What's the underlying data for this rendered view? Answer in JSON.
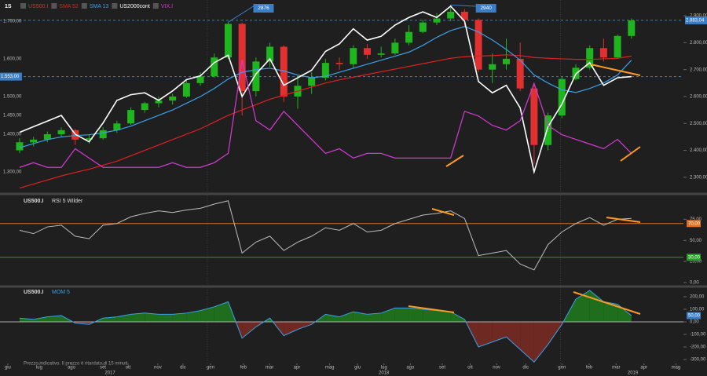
{
  "chart_data": [
    {
      "type": "candlestick",
      "timeframe": "1S",
      "x": [
        0,
        1,
        2,
        3,
        4,
        5,
        6,
        7,
        8,
        9,
        10,
        11,
        12,
        13,
        14,
        15,
        16,
        17,
        18,
        19,
        20,
        21,
        22,
        23,
        24,
        25,
        26,
        27,
        28,
        29,
        30,
        31,
        32,
        33,
        34,
        35,
        36,
        37,
        38,
        39,
        40,
        41,
        42,
        43,
        44
      ],
      "xlim": [
        -1.41,
        47.74
      ],
      "xticks": [
        {
          "value": -0.85,
          "label": "giu"
        },
        {
          "value": 1.41,
          "label": "lug"
        },
        {
          "value": 3.73,
          "label": "ago"
        },
        {
          "value": 5.99,
          "label": "set"
        },
        {
          "value": 7.8,
          "label": "ott"
        },
        {
          "value": 9.94,
          "label": "nov"
        },
        {
          "value": 11.75,
          "label": "dic"
        },
        {
          "value": 13.73,
          "label": "gen"
        },
        {
          "value": 16.1,
          "label": "feb"
        },
        {
          "value": 17.97,
          "label": "mar"
        },
        {
          "value": 19.94,
          "label": "apr"
        },
        {
          "value": 22.3,
          "label": "mag"
        },
        {
          "value": 24.3,
          "label": "giu"
        },
        {
          "value": 26.2,
          "label": "lug"
        },
        {
          "value": 28.1,
          "label": "ago"
        },
        {
          "value": 30.4,
          "label": "set"
        },
        {
          "value": 32.4,
          "label": "ott"
        },
        {
          "value": 34.3,
          "label": "nov"
        },
        {
          "value": 36.4,
          "label": "dic"
        },
        {
          "value": 39.0,
          "label": "gen"
        },
        {
          "value": 40.96,
          "label": "feb"
        },
        {
          "value": 42.9,
          "label": "mar"
        },
        {
          "value": 44.9,
          "label": "apr"
        },
        {
          "value": 47.2,
          "label": "mag"
        }
      ],
      "years": [
        {
          "value": 6.5,
          "label": "2017"
        },
        {
          "value": 26.2,
          "label": "2018"
        },
        {
          "value": 44.1,
          "label": "2019"
        }
      ],
      "year_lines": [
        13.5,
        38.9
      ],
      "ylim": [
        2250,
        2944
      ],
      "yticks": [
        {
          "value": 2900,
          "label": "2.900,00"
        },
        {
          "value": 2800,
          "label": "2.800,00"
        },
        {
          "value": 2700,
          "label": "2.700,00"
        },
        {
          "value": 2600,
          "label": "2.600,00"
        },
        {
          "value": 2500,
          "label": "2.500,00"
        },
        {
          "value": 2400,
          "label": "2.400,00"
        },
        {
          "value": 2300,
          "label": "2.300,00"
        }
      ],
      "y2lim": [
        1250,
        1746
      ],
      "y2ticks": [
        {
          "value": 1700,
          "label": "1.700,00"
        },
        {
          "value": 1600,
          "label": "1.600,00"
        },
        {
          "value": 1500,
          "label": "1.500,00"
        },
        {
          "value": 1450,
          "label": "1.450,00"
        },
        {
          "value": 1400,
          "label": "1.400,00"
        },
        {
          "value": 1300,
          "label": "1.300,00"
        }
      ],
      "y3lim": [
        5,
        45
      ],
      "price_marker": {
        "value": 2883.04,
        "label": "2.883,04"
      },
      "price_marker2": {
        "value": 1553,
        "label": "1.553,00"
      },
      "callouts": [
        {
          "x": 15,
          "value": 2876
        },
        {
          "x": 31,
          "value": 2940
        }
      ],
      "candles": {
        "name": "US500.I",
        "up_color": "#1fb51f",
        "down_color": "#e03030",
        "ohlc": [
          [
            2400,
            2445,
            2390,
            2430
          ],
          [
            2430,
            2450,
            2415,
            2440
          ],
          [
            2440,
            2470,
            2430,
            2460
          ],
          [
            2460,
            2485,
            2450,
            2475
          ],
          [
            2475,
            2480,
            2420,
            2440
          ],
          [
            2440,
            2460,
            2425,
            2445
          ],
          [
            2445,
            2485,
            2440,
            2475
          ],
          [
            2475,
            2510,
            2465,
            2500
          ],
          [
            2500,
            2560,
            2495,
            2550
          ],
          [
            2550,
            2580,
            2540,
            2575
          ],
          [
            2575,
            2600,
            2560,
            2585
          ],
          [
            2585,
            2610,
            2570,
            2600
          ],
          [
            2600,
            2665,
            2595,
            2650
          ],
          [
            2650,
            2690,
            2640,
            2675
          ],
          [
            2675,
            2760,
            2670,
            2745
          ],
          [
            2745,
            2876,
            2740,
            2870
          ],
          [
            2870,
            2875,
            2530,
            2620
          ],
          [
            2620,
            2745,
            2600,
            2730
          ],
          [
            2730,
            2800,
            2710,
            2785
          ],
          [
            2785,
            2790,
            2580,
            2600
          ],
          [
            2600,
            2680,
            2555,
            2640
          ],
          [
            2640,
            2690,
            2610,
            2670
          ],
          [
            2670,
            2740,
            2660,
            2725
          ],
          [
            2725,
            2745,
            2700,
            2720
          ],
          [
            2720,
            2790,
            2705,
            2780
          ],
          [
            2780,
            2795,
            2740,
            2755
          ],
          [
            2755,
            2785,
            2745,
            2760
          ],
          [
            2760,
            2815,
            2755,
            2800
          ],
          [
            2800,
            2865,
            2790,
            2840
          ],
          [
            2840,
            2885,
            2835,
            2875
          ],
          [
            2875,
            2910,
            2865,
            2890
          ],
          [
            2890,
            2940,
            2880,
            2915
          ],
          [
            2915,
            2925,
            2860,
            2885
          ],
          [
            2885,
            2890,
            2690,
            2700
          ],
          [
            2700,
            2760,
            2650,
            2720
          ],
          [
            2720,
            2815,
            2700,
            2740
          ],
          [
            2740,
            2800,
            2620,
            2630
          ],
          [
            2630,
            2650,
            2350,
            2420
          ],
          [
            2420,
            2540,
            2400,
            2530
          ],
          [
            2530,
            2675,
            2520,
            2665
          ],
          [
            2665,
            2720,
            2660,
            2707
          ],
          [
            2707,
            2790,
            2700,
            2780
          ],
          [
            2780,
            2815,
            2730,
            2745
          ],
          [
            2745,
            2830,
            2740,
            2825
          ],
          [
            2825,
            2890,
            2815,
            2883
          ]
        ]
      },
      "series": [
        {
          "name": "SMA 52",
          "color": "#e02020",
          "axis": "y",
          "values": [
            2260,
            2275,
            2290,
            2305,
            2318,
            2330,
            2345,
            2360,
            2380,
            2400,
            2420,
            2440,
            2460,
            2480,
            2505,
            2530,
            2550,
            2570,
            2590,
            2605,
            2620,
            2635,
            2650,
            2662,
            2672,
            2682,
            2692,
            2702,
            2712,
            2722,
            2732,
            2742,
            2748,
            2750,
            2752,
            2755,
            2752,
            2745,
            2742,
            2740,
            2738,
            2738,
            2740,
            2742,
            2750
          ]
        },
        {
          "name": "SMA 13",
          "color": "#3aa0e8",
          "axis": "y",
          "values": [
            2410,
            2425,
            2440,
            2450,
            2455,
            2458,
            2465,
            2475,
            2490,
            2510,
            2530,
            2550,
            2575,
            2600,
            2630,
            2665,
            2690,
            2700,
            2705,
            2695,
            2680,
            2670,
            2675,
            2690,
            2705,
            2720,
            2735,
            2750,
            2765,
            2790,
            2820,
            2845,
            2860,
            2840,
            2810,
            2775,
            2735,
            2680,
            2650,
            2625,
            2615,
            2630,
            2650,
            2680,
            2735
          ]
        },
        {
          "name": "US2000cont",
          "color": "#ffffff",
          "axis": "y2",
          "values": [
            1405,
            1420,
            1435,
            1450,
            1400,
            1380,
            1430,
            1490,
            1505,
            1510,
            1490,
            1515,
            1545,
            1555,
            1590,
            1610,
            1500,
            1560,
            1600,
            1530,
            1550,
            1570,
            1620,
            1640,
            1680,
            1650,
            1660,
            1690,
            1710,
            1725,
            1710,
            1740,
            1700,
            1540,
            1510,
            1530,
            1470,
            1300,
            1420,
            1480,
            1560,
            1590,
            1530,
            1550,
            1553
          ]
        },
        {
          "name": "VIX.I",
          "color": "#d63ad6",
          "axis": "y3",
          "values": [
            10,
            11,
            10,
            10,
            14,
            12,
            10,
            10,
            10,
            10,
            10,
            11,
            10,
            10,
            11,
            13,
            33,
            20,
            18,
            22,
            19,
            16,
            13,
            14,
            12,
            13,
            13,
            12,
            12,
            12,
            12,
            12,
            22,
            21,
            19,
            18,
            20,
            28,
            19,
            17,
            16,
            15,
            14,
            16,
            13
          ]
        }
      ],
      "note": "Prezzo indicativo. Il prezzo è ritardato di 15 minuti"
    },
    {
      "type": "line",
      "title": "US500.I",
      "indicator": "RSI 5 Wilder",
      "color": "#bdbdbd",
      "ylim": [
        0,
        100
      ],
      "yticks": [
        {
          "value": 0,
          "label": "0,00"
        },
        {
          "value": 25,
          "label": "25,00"
        },
        {
          "value": 50,
          "label": "50,00"
        },
        {
          "value": 75,
          "label": "75,00"
        }
      ],
      "levels": [
        {
          "value": 70,
          "label": "70,00",
          "color": "#e07020"
        },
        {
          "value": 30,
          "label": "30,00",
          "color": "#2a9a2a"
        }
      ],
      "values": [
        62,
        58,
        66,
        68,
        55,
        52,
        68,
        70,
        78,
        82,
        85,
        83,
        86,
        88,
        93,
        97,
        35,
        48,
        55,
        38,
        48,
        55,
        65,
        62,
        70,
        60,
        62,
        70,
        75,
        80,
        82,
        85,
        76,
        32,
        35,
        38,
        22,
        15,
        45,
        60,
        70,
        77,
        68,
        75,
        76
      ]
    },
    {
      "type": "area",
      "title": "US500.I",
      "indicator": "MOM 5",
      "color": "#3aa0e8",
      "pos_fill": "#1e6e1e",
      "neg_fill": "#6e2a22",
      "ylim": [
        -331,
        250
      ],
      "yticks": [
        {
          "value": 200,
          "label": "200,00"
        },
        {
          "value": 100,
          "label": "100,00"
        },
        {
          "value": 0,
          "label": "0,00"
        },
        {
          "value": -100,
          "label": "-100,00"
        },
        {
          "value": -200,
          "label": "-200,00"
        },
        {
          "value": -300,
          "label": "-300,00"
        }
      ],
      "last_label": "50,00",
      "values": [
        30,
        20,
        40,
        50,
        -10,
        -20,
        30,
        40,
        60,
        70,
        60,
        60,
        70,
        90,
        120,
        160,
        -130,
        -40,
        30,
        -110,
        -60,
        -20,
        60,
        40,
        80,
        60,
        70,
        110,
        110,
        100,
        90,
        80,
        20,
        -200,
        -160,
        -120,
        -220,
        -320,
        -180,
        -20,
        180,
        250,
        160,
        140,
        50
      ]
    }
  ]
}
